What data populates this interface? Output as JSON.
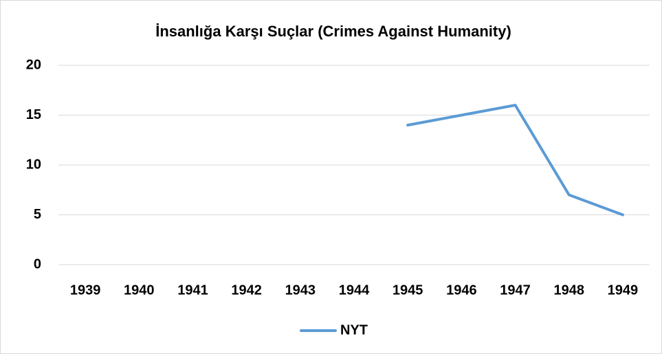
{
  "chart_data": {
    "type": "line",
    "title": "İnsanlığa Karşı Suçlar (Crimes Against Humanity)",
    "categories": [
      "1939",
      "1940",
      "1941",
      "1942",
      "1943",
      "1944",
      "1945",
      "1946",
      "1947",
      "1948",
      "1949"
    ],
    "series": [
      {
        "name": "NYT",
        "color": "#5b9bd5",
        "values": [
          null,
          null,
          null,
          null,
          null,
          null,
          14,
          15,
          16,
          7,
          5
        ]
      }
    ],
    "ylim": [
      0,
      20
    ],
    "yticks": [
      0,
      5,
      10,
      15,
      20
    ],
    "grid": true,
    "legend": "bottom"
  }
}
